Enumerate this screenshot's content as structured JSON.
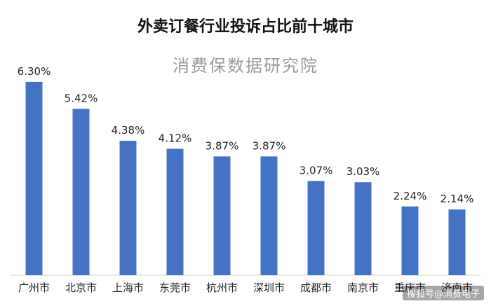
{
  "chart_data": {
    "type": "bar",
    "title": "外卖订餐行业投诉占比前十城市",
    "subtitle": "消费保数据研究院",
    "categories": [
      "广州市",
      "北京市",
      "上海市",
      "东莞市",
      "杭州市",
      "深圳市",
      "成都市",
      "南京市",
      "重庆市",
      "济南市"
    ],
    "values": [
      6.3,
      5.42,
      4.38,
      4.12,
      3.87,
      3.87,
      3.07,
      3.03,
      2.24,
      2.14
    ],
    "value_labels": [
      "6.30%",
      "5.42%",
      "4.38%",
      "4.12%",
      "3.87%",
      "3.87%",
      "3.07%",
      "3.03%",
      "2.24%",
      "2.14%"
    ],
    "ylim": [
      0,
      6.8
    ],
    "grid": false,
    "bar_color": "#4472c4"
  },
  "credit": "搜狐号@消费电子"
}
